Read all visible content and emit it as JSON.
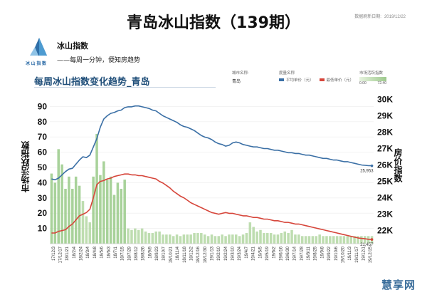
{
  "header": {
    "title": "青岛冰山指数（139期）",
    "update_label": "数据刷新日期:",
    "update_date": "2019/12/22"
  },
  "brand": {
    "name": "冰山指数",
    "logo_text": "冰 山 指 数",
    "slogan": "——每周一分钟，便知房趋势"
  },
  "filters": {
    "city_label": "城市名称:",
    "city_value": "青岛",
    "price_label": "度量名称",
    "price_items": [
      "平均单价（元）",
      "最低单价（元）"
    ],
    "index_label": "市场活跃指数",
    "index_min": "0.00",
    "index_max": "72.40"
  },
  "watermark": "慧享网",
  "colors": {
    "blue": "#3a6fa5",
    "red": "#d6453a",
    "bar": "#b7d9a7",
    "bar_strong": "#9fcd8f"
  },
  "chart_data": {
    "type": "bar+line",
    "title": "每周冰山指数变化趋势_青岛",
    "y1label": "市场活跃指数",
    "y2label": "房价指数",
    "y1ticks": [
      "10",
      "20",
      "30",
      "40",
      "50",
      "60",
      "70",
      "80",
      "90"
    ],
    "y2ticks": [
      "22K",
      "23K",
      "24K",
      "25K",
      "26K",
      "27K",
      "28K",
      "29K",
      "30K"
    ],
    "y1lim": [
      0,
      100
    ],
    "y2lim": [
      21200,
      30500
    ],
    "xlabels": [
      "17/12/3",
      "17/12/17",
      "18/1/21",
      "18/2/4",
      "18/2/24",
      "18/3/4",
      "18/4/8",
      "18/5/6",
      "18/6/3",
      "18/7/1",
      "18/7/15",
      "18/7/29",
      "18/8/12",
      "18/8/26",
      "18/9/9",
      "18/9/23",
      "18/10/7",
      "18/10/21",
      "18/11/4",
      "18/11/18",
      "18/12/2",
      "18/12/16",
      "18/12/30",
      "19/1/13",
      "19/2/10",
      "19/2/24",
      "19/3/10",
      "19/3/24",
      "19/4/7",
      "19/4/21",
      "19/5/5",
      "19/5/19",
      "19/6/2",
      "19/6/16",
      "19/6/30",
      "19/7/14",
      "19/7/28",
      "19/8/11",
      "19/8/25",
      "19/9/8",
      "19/9/22",
      "19/10/6",
      "19/10/20",
      "19/11/3",
      "19/11/17",
      "19/12/1",
      "19/12/15"
    ],
    "bars": [
      46,
      40,
      62,
      52,
      36,
      44,
      36,
      44,
      38,
      28,
      18,
      14,
      44,
      72,
      45,
      54,
      42,
      44,
      32,
      40,
      36,
      42,
      10,
      9,
      10,
      9,
      10,
      8,
      7,
      7,
      8,
      8,
      6,
      6,
      6,
      5,
      6,
      5,
      6,
      6,
      6,
      7,
      7,
      7,
      6,
      5,
      6,
      5,
      5,
      6,
      5,
      6,
      6,
      6,
      5,
      6,
      7,
      14,
      11,
      8,
      9,
      7,
      7,
      7,
      6,
      6,
      7,
      8,
      7,
      9,
      6,
      6,
      5,
      5,
      5,
      5,
      5,
      6,
      5,
      5,
      5,
      5,
      5,
      5,
      5,
      5,
      5,
      5,
      5,
      5,
      5,
      5,
      5
    ],
    "series": [
      {
        "name": "平均单价（元）",
        "values": [
          25150,
          25100,
          25200,
          25400,
          25600,
          25750,
          25800,
          26050,
          26300,
          26500,
          26450,
          26600,
          27100,
          27600,
          28300,
          28800,
          29000,
          29150,
          29200,
          29300,
          29350,
          29500,
          29550,
          29550,
          29600,
          29600,
          29550,
          29500,
          29450,
          29350,
          29300,
          29150,
          29000,
          28900,
          28800,
          28700,
          28600,
          28450,
          28350,
          28300,
          28200,
          28100,
          27950,
          27800,
          27700,
          27650,
          27550,
          27400,
          27300,
          27250,
          27150,
          27200,
          27350,
          27400,
          27350,
          27250,
          27200,
          27150,
          27100,
          27100,
          27050,
          27000,
          27000,
          26950,
          26900,
          26900,
          26850,
          26800,
          26750,
          26750,
          26700,
          26700,
          26650,
          26600,
          26600,
          26550,
          26500,
          26450,
          26400,
          26400,
          26350,
          26300,
          26300,
          26250,
          26200,
          26200,
          26150,
          26100,
          26050,
          26000,
          25980,
          25960,
          25953
        ]
      },
      {
        "name": "最低单价（元）",
        "values": [
          21850,
          21850,
          21950,
          22000,
          22050,
          22250,
          22400,
          22650,
          22900,
          23000,
          23100,
          23300,
          24000,
          24800,
          25000,
          25050,
          25150,
          25200,
          25300,
          25350,
          25400,
          25450,
          25450,
          25400,
          25400,
          25350,
          25350,
          25300,
          25250,
          25200,
          25150,
          25000,
          24900,
          24750,
          24600,
          24400,
          24250,
          24100,
          24000,
          23850,
          23700,
          23600,
          23500,
          23400,
          23300,
          23200,
          23100,
          23050,
          23000,
          23050,
          23100,
          23050,
          23050,
          23000,
          22950,
          22900,
          22900,
          22850,
          22800,
          22800,
          22750,
          22700,
          22700,
          22650,
          22600,
          22600,
          22550,
          22500,
          22500,
          22450,
          22400,
          22400,
          22350,
          22300,
          22250,
          22200,
          22150,
          22100,
          22050,
          22000,
          21950,
          21900,
          21850,
          21800,
          21750,
          21700,
          21650,
          21600,
          21550,
          21520,
          21500,
          21470,
          21457
        ]
      }
    ],
    "end_labels": [
      "25,953",
      "21,457"
    ]
  }
}
